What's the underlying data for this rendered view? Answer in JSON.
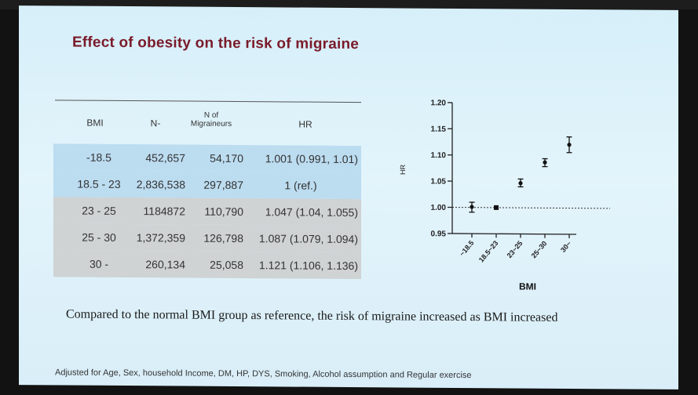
{
  "title": "Effect of obesity on the risk of migraine",
  "table": {
    "headers": {
      "bmi": "BMI",
      "n": "N-",
      "migraineurs_line1": "N of",
      "migraineurs_line2": "Migraineurs",
      "hr": "HR"
    },
    "rows": [
      {
        "bmi": "-18.5",
        "n": "452,657",
        "migraineurs": "54,170",
        "hr": "1.001 (0.991, 1.01)"
      },
      {
        "bmi": "18.5 - 23",
        "n": "2,836,538",
        "migraineurs": "297,887",
        "hr": "1 (ref.)"
      },
      {
        "bmi": "23 - 25",
        "n": "1184872",
        "migraineurs": "110,790",
        "hr": "1.047 (1.04, 1.055)"
      },
      {
        "bmi": "25 - 30",
        "n": "1,372,359",
        "migraineurs": "126,798",
        "hr": "1.087 (1.079, 1.094)"
      },
      {
        "bmi": "30 -",
        "n": "260,134",
        "migraineurs": "25,058",
        "hr": "1.121 (1.106, 1.136)"
      }
    ]
  },
  "chart_data": {
    "type": "scatter",
    "xlabel": "BMI",
    "ylabel": "HR",
    "categories": [
      "~18.5",
      "18.5~23",
      "23~25",
      "25~30",
      "30~"
    ],
    "values": [
      1.001,
      1.0,
      1.047,
      1.087,
      1.121
    ],
    "lower": [
      0.991,
      1.0,
      1.04,
      1.079,
      1.106
    ],
    "upper": [
      1.01,
      1.0,
      1.055,
      1.094,
      1.136
    ],
    "reference": 1.0,
    "ylim": [
      0.95,
      1.2
    ],
    "yticks": [
      "0.95",
      "1.00",
      "1.05",
      "1.10",
      "1.15",
      "1.20"
    ]
  },
  "caption": "Compared to the normal BMI group as reference, the risk of migraine increased as BMI increased",
  "footnote": "Adjusted for Age, Sex, household Income, DM, HP, DYS, Smoking, Alcohol assumption and Regular exercise"
}
